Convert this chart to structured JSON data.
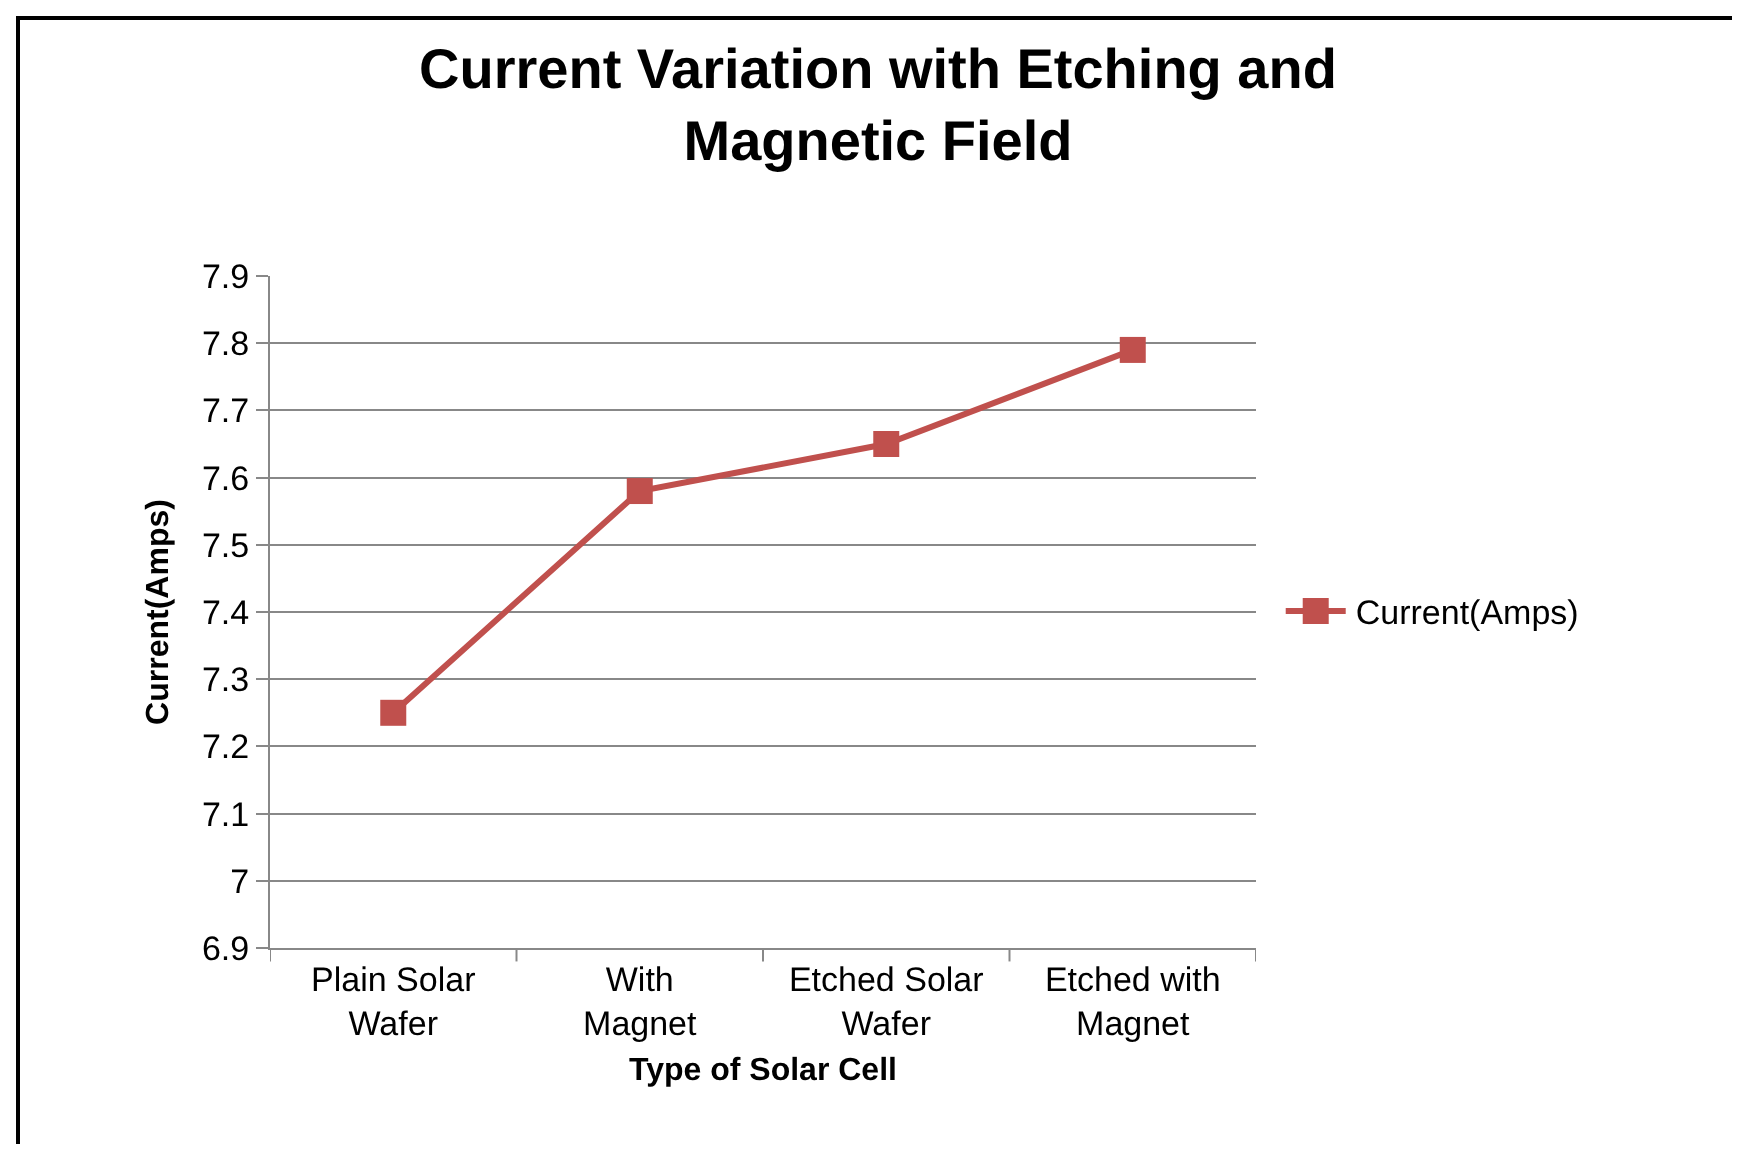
{
  "chart_data": {
    "type": "line",
    "title": "Current Variation with Etching and Magnetic Field",
    "xlabel": "Type of Solar Cell",
    "ylabel": "Current(Amps)",
    "categories": [
      "Plain Solar Wafer",
      "With Magnet",
      "Etched Solar Wafer",
      "Etched with Magnet"
    ],
    "series": [
      {
        "name": "Current(Amps)",
        "color": "#c0504d",
        "values": [
          7.25,
          7.58,
          7.65,
          7.79
        ]
      }
    ],
    "ylim": [
      6.9,
      7.9
    ],
    "yticks": [
      6.9,
      7,
      7.1,
      7.2,
      7.3,
      7.4,
      7.5,
      7.6,
      7.7,
      7.8,
      7.9
    ],
    "grid": "y",
    "legend": "right",
    "marker": "square",
    "line_style": "solid"
  }
}
